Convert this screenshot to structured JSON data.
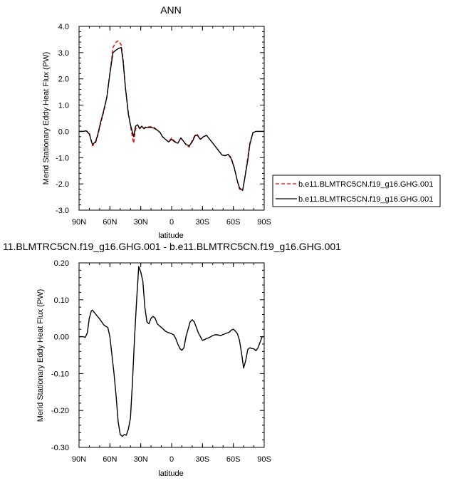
{
  "chart_data": [
    {
      "type": "line",
      "title": "ANN",
      "xlabel": "latitude",
      "ylabel": "Merid Stationary Eddy Heat Flux (PW)",
      "xlim": [
        90,
        -90
      ],
      "ylim": [
        -3.0,
        4.0
      ],
      "x_ticks": [
        90,
        60,
        30,
        0,
        -30,
        -60,
        -90
      ],
      "x_tick_labels": [
        "90N",
        "60N",
        "30N",
        "0",
        "30S",
        "60S",
        "90S"
      ],
      "y_ticks": [
        -3,
        -2,
        -1,
        0,
        1,
        2,
        3,
        4
      ],
      "y_tick_labels": [
        "-3.0",
        "-2.0",
        "-1.0",
        "0.0",
        "1.0",
        "2.0",
        "3.0",
        "4.0"
      ],
      "legend_position": "right",
      "series": [
        {
          "name": "b.e11.BLMTRC5CN.f19_g16.GHG.001",
          "color": "#ff0000",
          "dash": "dashed",
          "x": [
            90,
            86,
            83,
            80,
            77,
            74,
            72,
            69,
            66,
            63,
            60,
            57,
            54,
            52,
            49,
            47,
            45,
            42,
            40,
            37,
            35,
            33,
            31,
            29,
            27,
            25,
            23,
            20,
            17,
            14,
            11,
            9,
            6,
            3,
            0,
            -3,
            -6,
            -9,
            -11,
            -14,
            -17,
            -20,
            -23,
            -25,
            -28,
            -31,
            -34,
            -37,
            -40,
            -43,
            -46,
            -49,
            -52,
            -55,
            -58,
            -61,
            -64,
            -66,
            -69,
            -71,
            -74,
            -76,
            -79,
            -82,
            -85,
            -87,
            -90
          ],
          "values": [
            0.0,
            0.0,
            0.02,
            -0.05,
            -0.55,
            -0.45,
            -0.2,
            0.3,
            0.75,
            1.3,
            2.2,
            3.2,
            3.4,
            3.45,
            3.3,
            2.7,
            1.7,
            0.7,
            0.2,
            -0.45,
            0.1,
            0.15,
            0.12,
            0.18,
            0.12,
            0.18,
            0.17,
            0.18,
            0.15,
            0.05,
            -0.05,
            -0.2,
            -0.3,
            -0.4,
            -0.25,
            -0.38,
            -0.45,
            -0.25,
            -0.35,
            -0.5,
            -0.6,
            -0.35,
            -0.12,
            -0.12,
            -0.3,
            -0.2,
            -0.15,
            -0.3,
            -0.45,
            -0.6,
            -0.75,
            -0.9,
            -0.92,
            -0.88,
            -1.0,
            -1.4,
            -1.9,
            -2.2,
            -2.25,
            -1.8,
            -1.0,
            -0.45,
            -0.05,
            0.0,
            0.0,
            0.0,
            0.0
          ]
        },
        {
          "name": "b.e11.BLMTRC5CN.f19_g16.GHG.001",
          "color": "#000000",
          "dash": "solid",
          "x": [
            90,
            86,
            83,
            80,
            77,
            74,
            72,
            69,
            66,
            63,
            60,
            57,
            54,
            52,
            49,
            47,
            45,
            42,
            40,
            37,
            35,
            33,
            31,
            29,
            27,
            25,
            23,
            20,
            17,
            14,
            11,
            9,
            6,
            3,
            0,
            -3,
            -6,
            -9,
            -11,
            -14,
            -17,
            -20,
            -23,
            -25,
            -28,
            -31,
            -34,
            -37,
            -40,
            -43,
            -46,
            -49,
            -52,
            -55,
            -58,
            -61,
            -64,
            -66,
            -69,
            -71,
            -74,
            -76,
            -79,
            -82,
            -85,
            -87,
            -90
          ],
          "values": [
            0.0,
            0.0,
            0.02,
            -0.1,
            -0.5,
            -0.4,
            -0.15,
            0.35,
            0.8,
            1.3,
            2.2,
            3.0,
            3.1,
            3.15,
            3.2,
            2.6,
            1.7,
            0.65,
            0.25,
            -0.2,
            0.2,
            0.25,
            0.1,
            0.2,
            0.1,
            0.15,
            0.15,
            0.15,
            0.12,
            0.05,
            -0.05,
            -0.2,
            -0.3,
            -0.4,
            -0.3,
            -0.4,
            -0.45,
            -0.25,
            -0.35,
            -0.5,
            -0.55,
            -0.4,
            -0.15,
            -0.15,
            -0.3,
            -0.2,
            -0.15,
            -0.3,
            -0.45,
            -0.6,
            -0.75,
            -0.9,
            -0.93,
            -0.87,
            -1.05,
            -1.4,
            -1.9,
            -2.15,
            -2.25,
            -1.8,
            -1.1,
            -0.5,
            -0.05,
            0.0,
            0.0,
            0.0,
            0.0
          ]
        }
      ]
    },
    {
      "type": "line",
      "title": "11.BLMTRC5CN.f19_g16.GHG.001 - b.e11.BLMTRC5CN.f19_g16.GHG.001",
      "xlabel": "latitude",
      "ylabel": "Merid Stationary Eddy Heat Flux (PW)",
      "xlim": [
        90,
        -90
      ],
      "ylim": [
        -0.3,
        0.2
      ],
      "x_ticks": [
        90,
        60,
        30,
        0,
        -30,
        -60,
        -90
      ],
      "x_tick_labels": [
        "90N",
        "60N",
        "30N",
        "0",
        "30S",
        "60S",
        "90S"
      ],
      "y_ticks": [
        -0.3,
        -0.2,
        -0.1,
        0.0,
        0.1,
        0.2
      ],
      "y_tick_labels": [
        "-0.30",
        "-0.20",
        "-0.10",
        "0.00",
        "0.10",
        "0.20"
      ],
      "series": [
        {
          "color": "#000000",
          "dash": "solid",
          "x": [
            90,
            88,
            86,
            84,
            82,
            80,
            78,
            77,
            75,
            73,
            70,
            68,
            66,
            64,
            62,
            60,
            58,
            56,
            54,
            52,
            50,
            48,
            46,
            44,
            42,
            40,
            38,
            36,
            34,
            32,
            30,
            28,
            26,
            24,
            22,
            20,
            18,
            16,
            14,
            12,
            10,
            8,
            6,
            4,
            2,
            0,
            -2,
            -4,
            -6,
            -8,
            -10,
            -12,
            -14,
            -16,
            -18,
            -20,
            -22,
            -24,
            -26,
            -28,
            -30,
            -32,
            -34,
            -36,
            -38,
            -40,
            -42,
            -44,
            -46,
            -48,
            -50,
            -52,
            -54,
            -56,
            -58,
            -60,
            -62,
            -64,
            -66,
            -68,
            -70,
            -72,
            -74,
            -76,
            -78,
            -80,
            -82,
            -84,
            -86,
            -88,
            -90
          ],
          "values": [
            0.0,
            0.0,
            0.0,
            -0.002,
            0.01,
            0.05,
            0.07,
            0.072,
            0.065,
            0.058,
            0.048,
            0.04,
            0.032,
            0.028,
            0.025,
            0.0,
            -0.05,
            -0.1,
            -0.16,
            -0.23,
            -0.265,
            -0.27,
            -0.265,
            -0.267,
            -0.25,
            -0.22,
            -0.12,
            0.0,
            0.1,
            0.19,
            0.175,
            0.15,
            0.08,
            0.04,
            0.035,
            0.05,
            0.055,
            0.05,
            0.035,
            0.03,
            0.025,
            0.02,
            0.015,
            0.012,
            0.01,
            0.008,
            0.005,
            -0.005,
            -0.02,
            -0.032,
            -0.037,
            -0.03,
            0.0,
            0.02,
            0.04,
            0.046,
            0.04,
            0.025,
            0.01,
            0.0,
            -0.01,
            -0.008,
            -0.005,
            -0.003,
            0.0,
            0.003,
            0.005,
            0.005,
            0.004,
            0.003,
            0.006,
            0.008,
            0.01,
            0.012,
            0.018,
            0.02,
            0.015,
            0.008,
            -0.01,
            -0.045,
            -0.085,
            -0.065,
            -0.035,
            -0.03,
            -0.032,
            -0.033,
            -0.038,
            -0.03,
            -0.015,
            0.0,
            0.0
          ]
        }
      ]
    }
  ]
}
